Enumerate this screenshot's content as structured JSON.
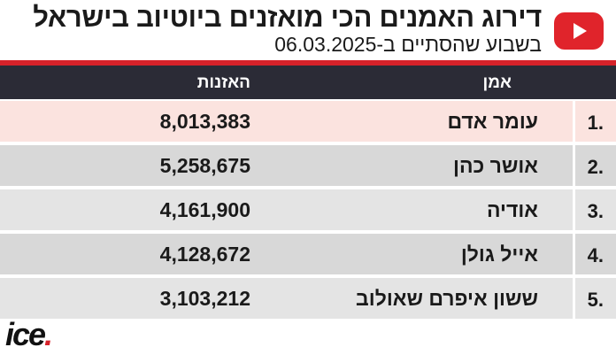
{
  "header": {
    "title": "דירוג האמנים הכי מואזנים ביוטיוב בישראל",
    "subtitle": "בשבוע שהסתיים ב-06.03.2025",
    "icon": "youtube-play-icon",
    "brand_color": "#e0242b"
  },
  "table": {
    "col_artist": "אמן",
    "col_listens": "האזנות",
    "rows": [
      {
        "rank": "1.",
        "artist": "עומר אדם",
        "listens": "8,013,383"
      },
      {
        "rank": "2.",
        "artist": "אושר כהן",
        "listens": "5,258,675"
      },
      {
        "rank": "3.",
        "artist": "אודיה",
        "listens": "4,161,900"
      },
      {
        "rank": "4.",
        "artist": "אייל גולן",
        "listens": "4,128,672"
      },
      {
        "rank": "5.",
        "artist": "ששון איפרם שאולוב",
        "listens": "3,103,212"
      }
    ]
  },
  "footer": {
    "logo_text": "ice",
    "logo_dot": ".",
    "accent_color": "#d6222a"
  }
}
